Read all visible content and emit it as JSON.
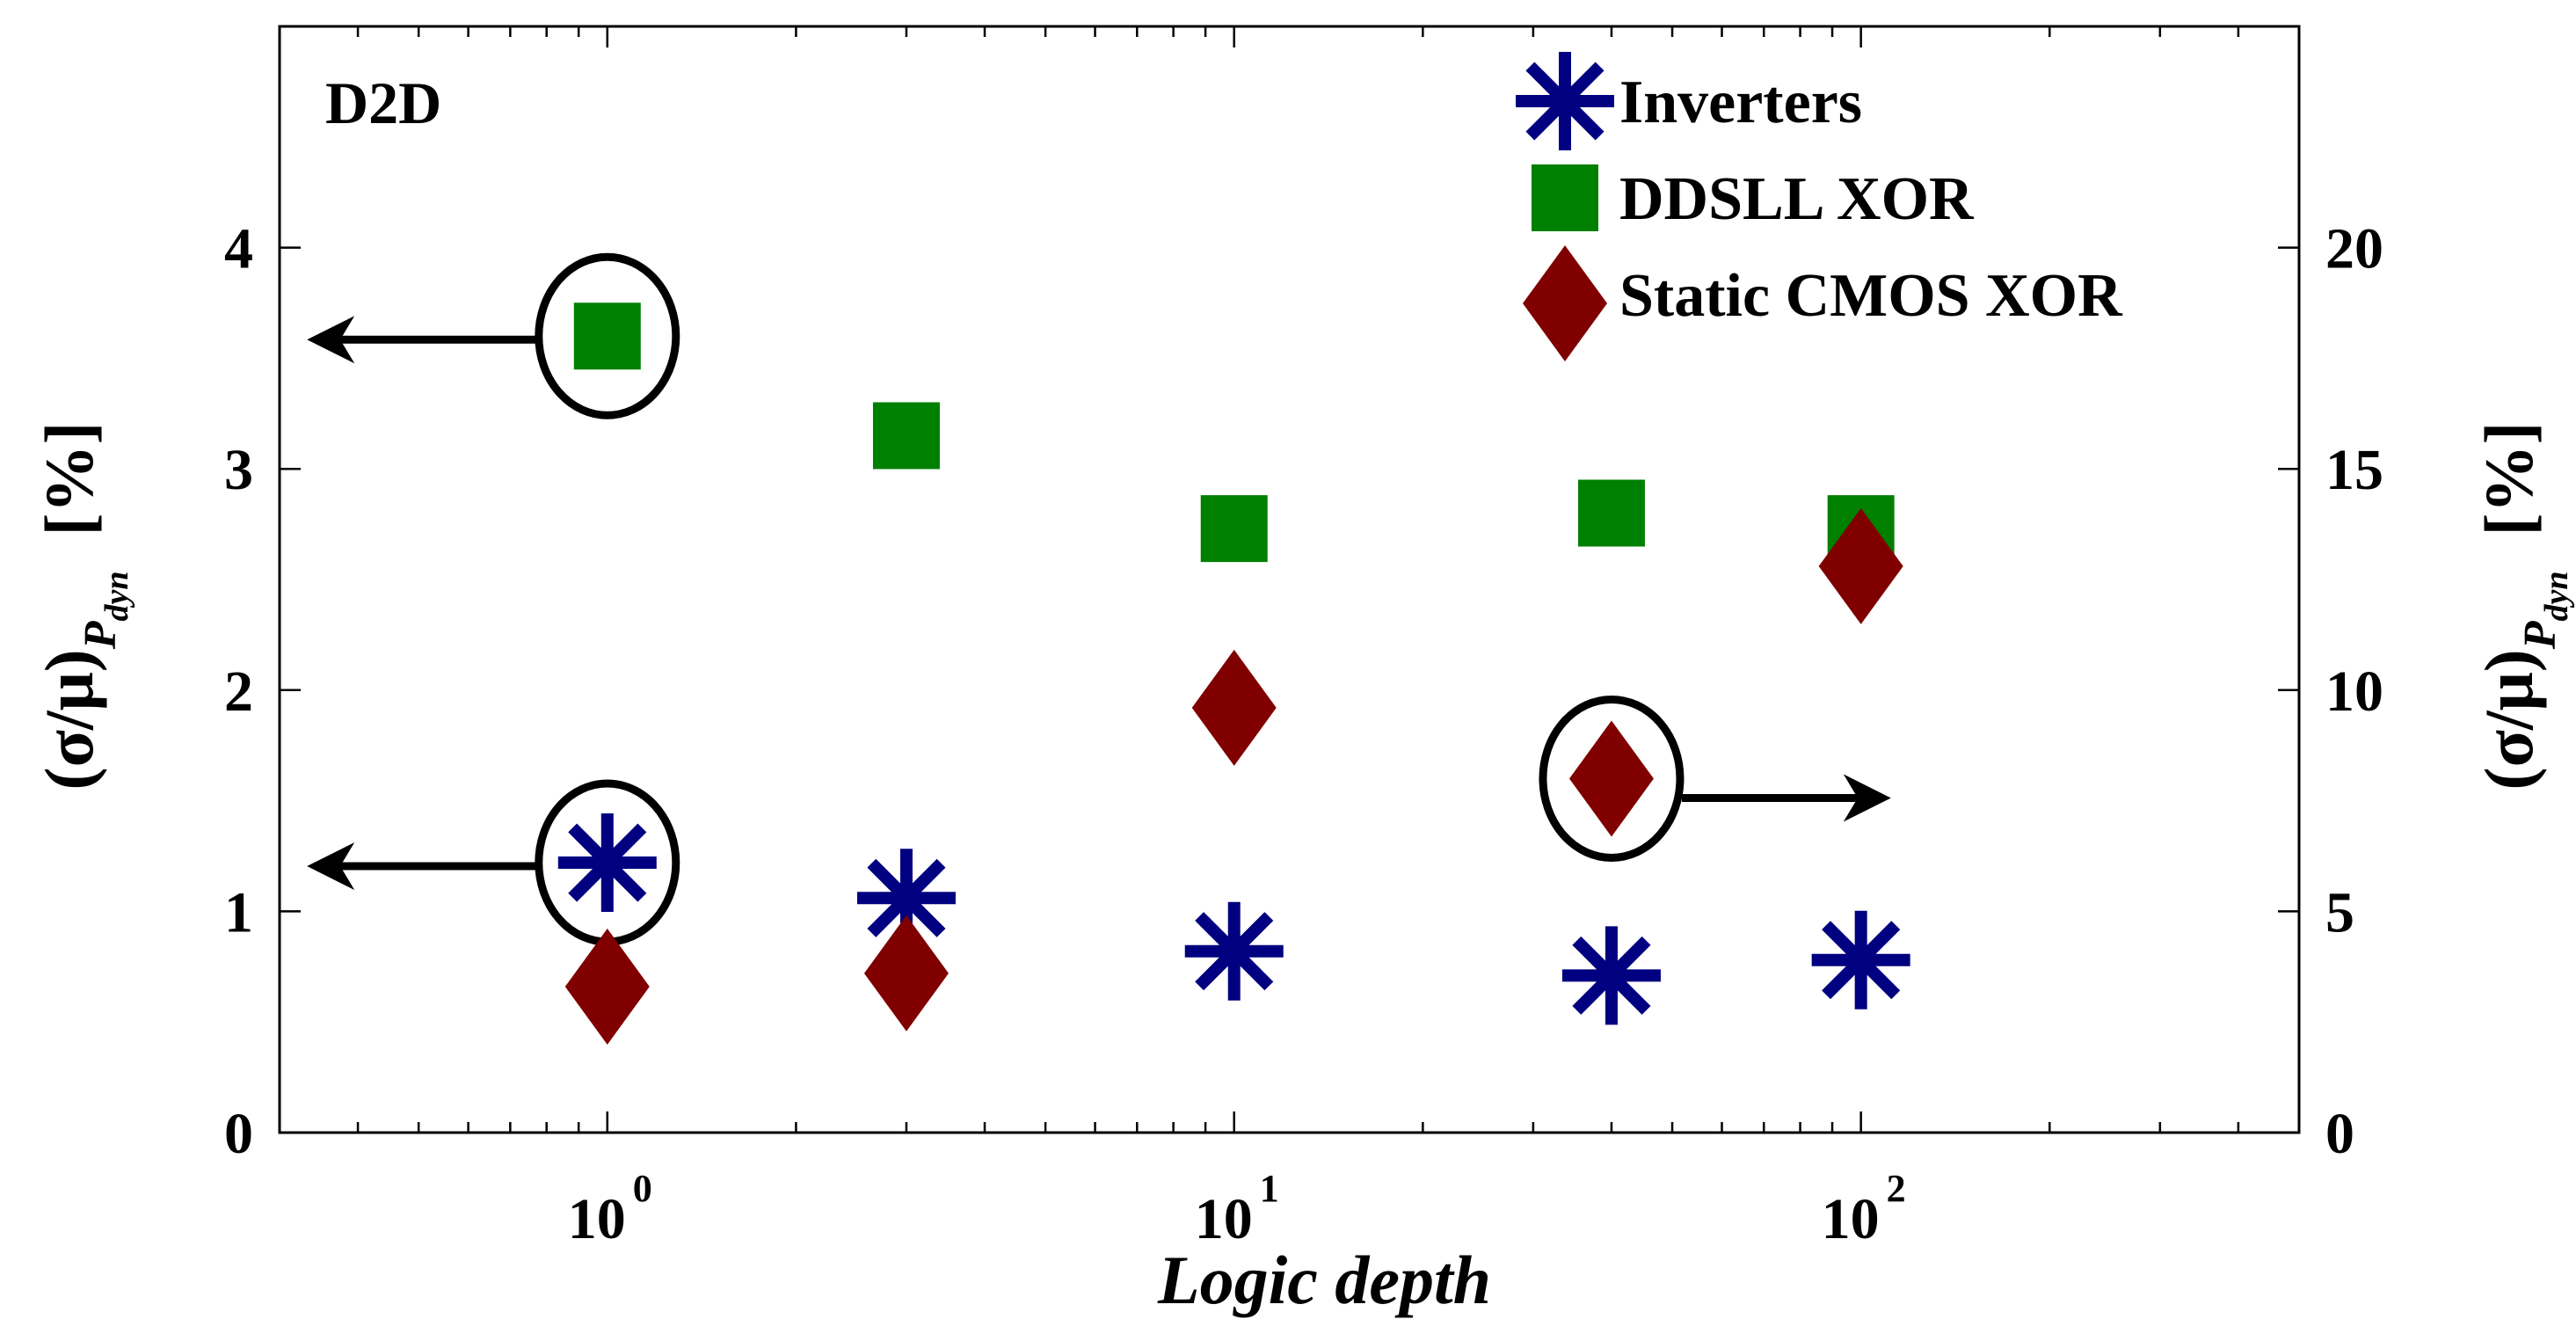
{
  "chart_data": {
    "type": "scatter",
    "x_scale": "log",
    "xlim": [
      0.3,
      500
    ],
    "ylim_left": [
      0,
      5
    ],
    "ylim_right": [
      0,
      25
    ],
    "xlabel": "Logic depth",
    "ylabel_left": {
      "main": "(σ/μ)",
      "sub_p": "P",
      "sub_dyn": "dyn",
      "unit": "[%]"
    },
    "ylabel_right": {
      "main": "(σ/μ)",
      "sub_p": "P",
      "sub_dyn": "dyn",
      "unit": "[%]"
    },
    "x_ticks": [
      {
        "value": 1,
        "base": "10",
        "exp": "0"
      },
      {
        "value": 10,
        "base": "10",
        "exp": "1"
      },
      {
        "value": 100,
        "base": "10",
        "exp": "2"
      }
    ],
    "y_ticks_left": [
      "0",
      "1",
      "2",
      "3",
      "4"
    ],
    "y_ticks_right": [
      "0",
      "5",
      "10",
      "15",
      "20"
    ],
    "corner_label": "D2D",
    "grid": false,
    "legend_position": "top-right",
    "series": [
      {
        "name": "Inverters",
        "marker": "asterisk",
        "color": "#000080",
        "axis": "left",
        "points": [
          [
            1,
            1.22
          ],
          [
            3,
            1.06
          ],
          [
            10,
            0.82
          ],
          [
            40,
            0.71
          ],
          [
            100,
            0.78
          ]
        ]
      },
      {
        "name": "DDSLL XOR",
        "marker": "square",
        "color": "#008000",
        "axis": "left",
        "points": [
          [
            1,
            3.6
          ],
          [
            3,
            3.15
          ],
          [
            10,
            2.73
          ],
          [
            40,
            2.8
          ],
          [
            100,
            2.73
          ]
        ]
      },
      {
        "name": "Static CMOS XOR",
        "marker": "diamond",
        "color": "#800000",
        "axis": "right",
        "points": [
          [
            1,
            3.3
          ],
          [
            3,
            3.6
          ],
          [
            10,
            9.6
          ],
          [
            40,
            8.0
          ],
          [
            100,
            12.8
          ]
        ]
      }
    ],
    "annotations": [
      {
        "type": "circle-arrow",
        "direction": "left",
        "target_series": "DDSLL XOR",
        "x": 1,
        "y": 3.6,
        "axis": "left"
      },
      {
        "type": "circle-arrow",
        "direction": "left",
        "target_series": "Inverters",
        "x": 1,
        "y": 1.22,
        "axis": "left"
      },
      {
        "type": "circle-arrow",
        "direction": "right",
        "target_series": "Static CMOS XOR",
        "x": 40,
        "y": 8.0,
        "axis": "right"
      }
    ]
  }
}
